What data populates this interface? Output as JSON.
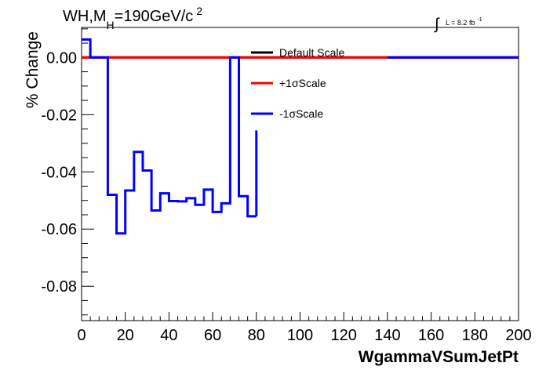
{
  "chart_data": {
    "type": "line",
    "title": {
      "prefix": "WH,M",
      "subscript": "H",
      "middle": "=190GeV/c",
      "superscript": "2"
    },
    "lumi_label": {
      "integral": "∫",
      "text": "L = 8.2 fb",
      "superscript": "-1"
    },
    "xlabel": "WgammaVSumJetPt",
    "ylabel": "% Change",
    "xlim": [
      0,
      200
    ],
    "ylim": [
      -0.092,
      0.0105
    ],
    "x_ticks": [
      0,
      20,
      40,
      60,
      80,
      100,
      120,
      140,
      160,
      180,
      200
    ],
    "x_tick_labels": [
      "0",
      "20",
      "40",
      "60",
      "80",
      "100",
      "120",
      "140",
      "160",
      "180",
      "200"
    ],
    "y_ticks": [
      0.0,
      -0.02,
      -0.04,
      -0.06,
      -0.08
    ],
    "y_tick_labels": [
      "0.00",
      "-0.02",
      "-0.04",
      "-0.06",
      "-0.08"
    ],
    "grid": false,
    "legend_position": "top-center",
    "series": [
      {
        "name": "Default Scale",
        "color": "#000000",
        "bin_edges": [
          0,
          140,
          200
        ],
        "values": [
          0.0,
          0.0
        ]
      },
      {
        "name": "+1σScale",
        "color": "#ff0000",
        "bin_edges": [
          0,
          140,
          200
        ],
        "values": [
          0.0,
          0.0
        ]
      },
      {
        "name": "-1σScale",
        "color": "#0000ff",
        "bin_edges": [
          0,
          4,
          12,
          16,
          20,
          24,
          28,
          32,
          36,
          40,
          44,
          48,
          52,
          56,
          60,
          64,
          68,
          72,
          76,
          80,
          140,
          200
        ],
        "values": [
          0.0063,
          0.0,
          -0.048,
          -0.0615,
          -0.0465,
          -0.033,
          -0.0395,
          -0.0535,
          -0.0475,
          -0.0502,
          -0.0503,
          -0.0492,
          -0.0515,
          -0.0462,
          -0.054,
          -0.051,
          0.0,
          -0.0485,
          -0.0555,
          null,
          0.0
        ],
        "trailing_vertical": {
          "x": 80,
          "from": -0.0555,
          "to": -0.0255
        }
      }
    ]
  }
}
